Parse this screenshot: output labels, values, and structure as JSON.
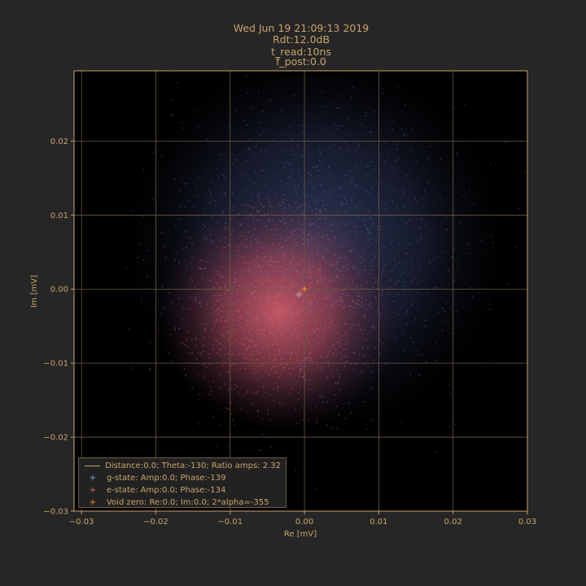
{
  "colors": {
    "background": "#262626",
    "axes_bg": "#000000",
    "text": "#c8a36a",
    "grid": "#6b5b43",
    "g_state": "#8aa0e8",
    "e_state": "#e06a6a",
    "void_zero": "#f0a020"
  },
  "chart_data": {
    "type": "scatter",
    "title_lines": [
      "Wed Jun 19 21:09:13 2019",
      "Rdt:12.0dB",
      "t_read:10ns",
      "f_post:0.0"
    ],
    "xlabel": "Re [mV]",
    "ylabel": "Im [mV]",
    "xlim": [
      -0.031,
      0.03
    ],
    "ylim": [
      -0.03,
      0.0295
    ],
    "xticks": [
      -0.03,
      -0.02,
      -0.01,
      0.0,
      0.01,
      0.02,
      0.03
    ],
    "xtick_labels": [
      "−0.03",
      "−0.02",
      "−0.01",
      "0.00",
      "0.01",
      "0.02",
      "0.03"
    ],
    "yticks": [
      -0.03,
      -0.02,
      -0.01,
      0.0,
      0.01,
      0.02
    ],
    "ytick_labels": [
      "−0.03",
      "−0.02",
      "−0.01",
      "0.00",
      "0.01",
      "0.02"
    ],
    "grid": true,
    "legend_position": "lower-left",
    "series": [
      {
        "name": "g-state: Amp:0.0; Phase:-139",
        "marker": "+",
        "cloud_center": [
          0.0015,
          0.006
        ],
        "cloud_spread": 0.0115,
        "mean_point": [
          -0.0008,
          -0.0008
        ]
      },
      {
        "name": "e-state: Amp:0.0; Phase:-134",
        "marker": "+",
        "cloud_center": [
          -0.0035,
          -0.003
        ],
        "cloud_spread": 0.0075,
        "mean_point": [
          -0.0006,
          -0.0006
        ]
      },
      {
        "name": "Void zero: Re:0.0; Im:0.0; 2*alpha=-355",
        "marker": "+",
        "mean_point": [
          0.0,
          0.0
        ]
      }
    ],
    "line_entry": {
      "name": "Distance:0.0; Theta:-130; Ratio amps: 2.32",
      "from": [
        -0.0008,
        -0.0008
      ],
      "to": [
        -0.0006,
        -0.0006
      ]
    }
  }
}
